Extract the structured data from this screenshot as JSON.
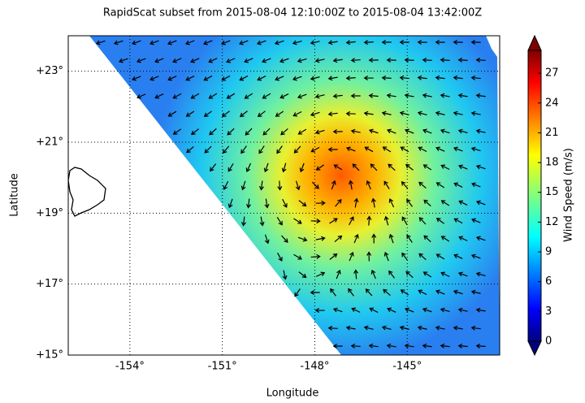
{
  "chart_data": {
    "type": "wind-map",
    "title": "RapidScat subset from 2015-08-04 12:10:00Z to 2015-08-04 13:42:00Z",
    "x_label": "Longitude",
    "y_label": "Latitude",
    "xlim": [
      -156,
      -142
    ],
    "ylim": [
      15,
      24
    ],
    "xticks": [
      {
        "value": -154,
        "label": "-154°"
      },
      {
        "value": -151,
        "label": "-151°"
      },
      {
        "value": -148,
        "label": "-148°"
      },
      {
        "value": -145,
        "label": "-145°"
      }
    ],
    "yticks": [
      {
        "value": 15,
        "label": "+15°"
      },
      {
        "value": 17,
        "label": "+17°"
      },
      {
        "value": 19,
        "label": "+19°"
      },
      {
        "value": 21,
        "label": "+21°"
      },
      {
        "value": 23,
        "label": "+23°"
      }
    ],
    "grid": true,
    "colorbar": {
      "label": "Wind Speed (m/s)",
      "colormap": "jet",
      "clim": [
        0,
        29.3
      ],
      "ticks": [
        0,
        3,
        6,
        9,
        12,
        15,
        18,
        21,
        24,
        27
      ]
    }
  }
}
